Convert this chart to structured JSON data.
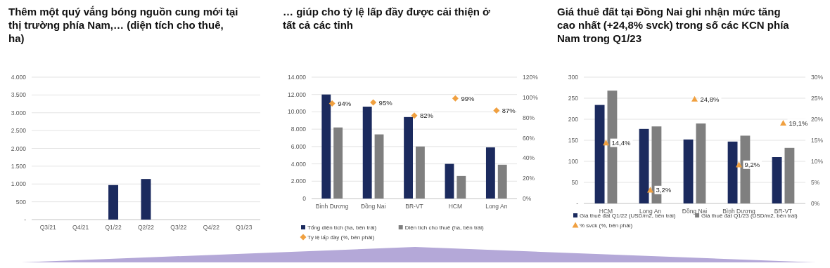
{
  "chart_data": [
    {
      "type": "bar",
      "title": "Thêm một quý vắng bóng nguồn cung mới tại thị trường phía Nam,… (diện tích cho thuê, ha)",
      "categories": [
        "Q3/21",
        "Q4/21",
        "Q1/22",
        "Q2/22",
        "Q3/22",
        "Q4/22",
        "Q1/23"
      ],
      "series": [
        {
          "color": "#1b2a5e",
          "values": [
            null,
            null,
            970,
            1140,
            null,
            null,
            null
          ]
        }
      ],
      "ylim": [
        0,
        4000
      ],
      "yticks": [
        {
          "value": 0,
          "label": "-"
        },
        500,
        {
          "value": 1000,
          "label": "1.000"
        },
        {
          "value": 1500,
          "label": "1.500"
        },
        {
          "value": 2000,
          "label": "2.000"
        },
        {
          "value": 2500,
          "label": "2.500"
        },
        {
          "value": 3000,
          "label": "3.000"
        },
        {
          "value": 3500,
          "label": "3.500"
        },
        {
          "value": 4000,
          "label": "4.000"
        }
      ],
      "grid": "y"
    },
    {
      "type": "bar",
      "title": "… giúp cho tỷ lệ lấp đầy được cải thiện ở tất cả các tỉnh",
      "categories": [
        "Bình Dương",
        "Đồng Nai",
        "BR-VT",
        "HCM",
        "Long An"
      ],
      "series": [
        {
          "name": "Tổng diện tích (ha, bên trái)",
          "color": "#1b2a5e",
          "values": [
            12000,
            10600,
            9400,
            4000,
            5900
          ]
        },
        {
          "name": "Diện tích cho thuê (ha, bên trái)",
          "color": "#7f7f7f",
          "values": [
            8200,
            7400,
            6000,
            2600,
            3900
          ]
        },
        {
          "name": "Tỷ lệ lấp đầy (%, bên phải)",
          "type": "scatter",
          "axis": "y2",
          "marker": "diamond",
          "color": "#f0a040",
          "values": [
            94,
            95,
            82,
            99,
            87
          ],
          "value_labels": [
            "94%",
            "95%",
            "82%",
            "99%",
            "87%"
          ]
        }
      ],
      "ylim": [
        0,
        14000
      ],
      "yticks": [
        0,
        {
          "value": 2000,
          "label": "2.000"
        },
        {
          "value": 4000,
          "label": "4.000"
        },
        {
          "value": 6000,
          "label": "6.000"
        },
        {
          "value": 8000,
          "label": "8.000"
        },
        {
          "value": 10000,
          "label": "10.000"
        },
        {
          "value": 12000,
          "label": "12.000"
        },
        {
          "value": 14000,
          "label": "14.000"
        }
      ],
      "y2lim": [
        0,
        120
      ],
      "y2ticks": [
        {
          "value": 0,
          "label": "0%"
        },
        {
          "value": 20,
          "label": "20%"
        },
        {
          "value": 40,
          "label": "40%"
        },
        {
          "value": 60,
          "label": "60%"
        },
        {
          "value": 80,
          "label": "80%"
        },
        {
          "value": 100,
          "label": "100%"
        },
        {
          "value": 120,
          "label": "120%"
        }
      ],
      "grid": "y",
      "legend": "bottom"
    },
    {
      "type": "bar",
      "title": "Giá thuê đất tại Đồng Nai ghi nhận mức tăng cao nhất (+24,8% svck) trong số các KCN phía Nam trong Q1/23",
      "categories": [
        "HCM",
        "Long An",
        "Đồng Nai",
        "Bình Dương",
        "BR-VT"
      ],
      "series": [
        {
          "name": "Giá thuê đất Q1/22 (USD/m2, bên trái)",
          "color": "#1b2a5e",
          "values": [
            234,
            177,
            152,
            147,
            110
          ]
        },
        {
          "name": "Giá thuê đất Q1/23 (USD/m2, bên trái)",
          "color": "#7f7f7f",
          "values": [
            268,
            183,
            190,
            161,
            132
          ]
        },
        {
          "name": "% svck (%, bên phải)",
          "type": "scatter",
          "axis": "y2",
          "marker": "triangle",
          "color": "#f0a040",
          "values": [
            14.4,
            3.2,
            24.8,
            9.2,
            19.1
          ],
          "value_labels": [
            "14,4%",
            "3,2%",
            "24,8%",
            "9,2%",
            "19,1%"
          ]
        }
      ],
      "ylim": [
        0,
        300
      ],
      "yticks": [
        {
          "value": 0,
          "label": "-"
        },
        50,
        100,
        150,
        200,
        250,
        300
      ],
      "y2lim": [
        0,
        30
      ],
      "y2ticks": [
        {
          "value": 0,
          "label": "0%"
        },
        {
          "value": 5,
          "label": "5%"
        },
        {
          "value": 10,
          "label": "10%"
        },
        {
          "value": 15,
          "label": "15%"
        },
        {
          "value": 20,
          "label": "20%"
        },
        {
          "value": 25,
          "label": "25%"
        },
        {
          "value": 30,
          "label": "30%"
        }
      ],
      "grid": "y",
      "legend": "bottom"
    }
  ]
}
